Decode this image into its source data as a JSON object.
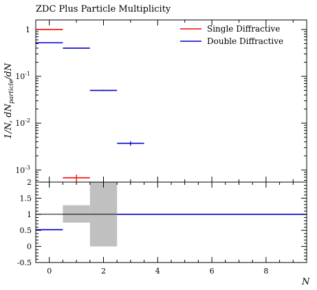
{
  "chart_data": [
    {
      "type": "step",
      "title": "ZDC Plus Particle Multiplicity",
      "ylabel": "1/N, dN_{particle}/dN",
      "yscale": "log",
      "ylim": [
        0.00055,
        1.6
      ],
      "xlim": [
        -0.5,
        9.5
      ],
      "ytick_labels": [
        "10^{-3}",
        "10^{-2}",
        "10^{-1}",
        "1"
      ],
      "legend_position": "top-right",
      "series": [
        {
          "name": "Single Diffractive",
          "color": "#ff0000",
          "points": [
            {
              "x_low": -0.5,
              "x_high": 0.5,
              "y": 1.0,
              "yerr": 0.0
            },
            {
              "x_low": 0.5,
              "x_high": 1.5,
              "y": 0.00068,
              "yerr": 0.00012
            }
          ]
        },
        {
          "name": "Double Diffractive",
          "color": "#0000cc",
          "points": [
            {
              "x_low": -0.5,
              "x_high": 0.5,
              "y": 0.52,
              "yerr": 0.0
            },
            {
              "x_low": 0.5,
              "x_high": 1.5,
              "y": 0.4,
              "yerr": 0.0
            },
            {
              "x_low": 1.5,
              "x_high": 2.5,
              "y": 0.05,
              "yerr": 0.0015
            },
            {
              "x_low": 2.5,
              "x_high": 3.5,
              "y": 0.0037,
              "yerr": 0.0004
            }
          ]
        }
      ]
    },
    {
      "type": "ratio",
      "xlabel": "N",
      "xlim": [
        -0.5,
        9.5
      ],
      "ylim": [
        -0.5,
        2
      ],
      "x_tick_labels": [
        "0",
        "2",
        "4",
        "6",
        "8"
      ],
      "y_tick_labels": [
        "-0.5",
        "0",
        "0.5",
        "1",
        "1.5",
        "2"
      ],
      "reference_value": 1,
      "band_color": "#c0c0c0",
      "band": [
        {
          "x_low": 0.5,
          "x_high": 1.5,
          "y_low": 0.74,
          "y_high": 1.28
        },
        {
          "x_low": 1.5,
          "x_high": 2.5,
          "y_low": 0.0,
          "y_high": 2.0
        }
      ],
      "ratio_line": {
        "color": "#0000cc",
        "segments": [
          {
            "x_low": -0.5,
            "x_high": 0.5,
            "y": 0.52
          },
          {
            "x_low": 2.5,
            "x_high": 9.5,
            "y": 1.0
          }
        ]
      }
    }
  ]
}
